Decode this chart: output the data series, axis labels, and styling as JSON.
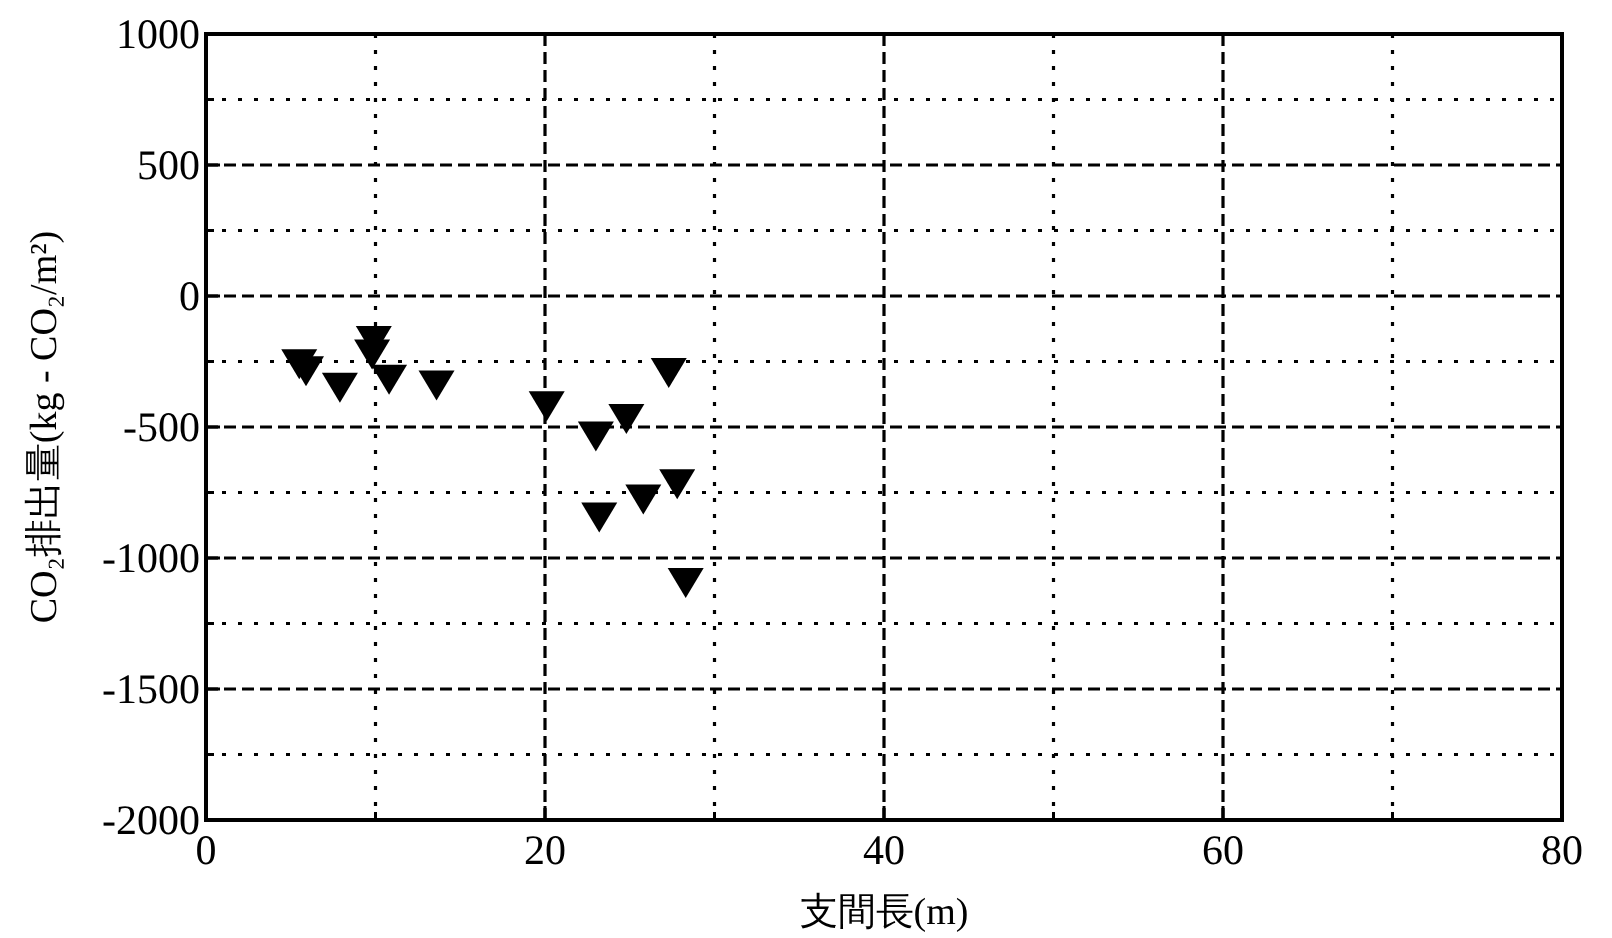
{
  "chart_data": {
    "type": "scatter",
    "xlabel": "支間長(m)",
    "ylabel": "CO₂排出量(kg - CO₂/m²)",
    "x": [
      5.5,
      5.9,
      7.9,
      9.9,
      9.8,
      10.8,
      13.6,
      20.1,
      23.0,
      24.8,
      27.3,
      23.2,
      25.8,
      27.8,
      28.3
    ],
    "series": [
      {
        "color": "#000000",
        "values": [
          -257,
          -283,
          -346,
          -168,
          -219,
          -316,
          -338,
          -417,
          -532,
          -466,
          -290,
          -842,
          -773,
          -715,
          -1092
        ]
      }
    ],
    "marker": "triangle",
    "grid": true,
    "xlim": [
      0,
      80
    ],
    "xticks": [
      0,
      {
        "value": 10,
        "label": null
      },
      20,
      {
        "value": 30,
        "label": null
      },
      40,
      {
        "value": 50,
        "label": null
      },
      60,
      {
        "value": 70,
        "label": null
      },
      80
    ],
    "ylim": [
      -2000,
      1000
    ],
    "yticks": [
      -2000,
      {
        "value": -1750,
        "label": null
      },
      -1500,
      {
        "value": -1250,
        "label": null
      },
      -1000,
      {
        "value": -750,
        "label": null
      },
      -500,
      {
        "value": -250,
        "label": null
      },
      0,
      {
        "value": 250,
        "label": null
      },
      500,
      {
        "value": 750,
        "label": null
      },
      1000
    ]
  }
}
